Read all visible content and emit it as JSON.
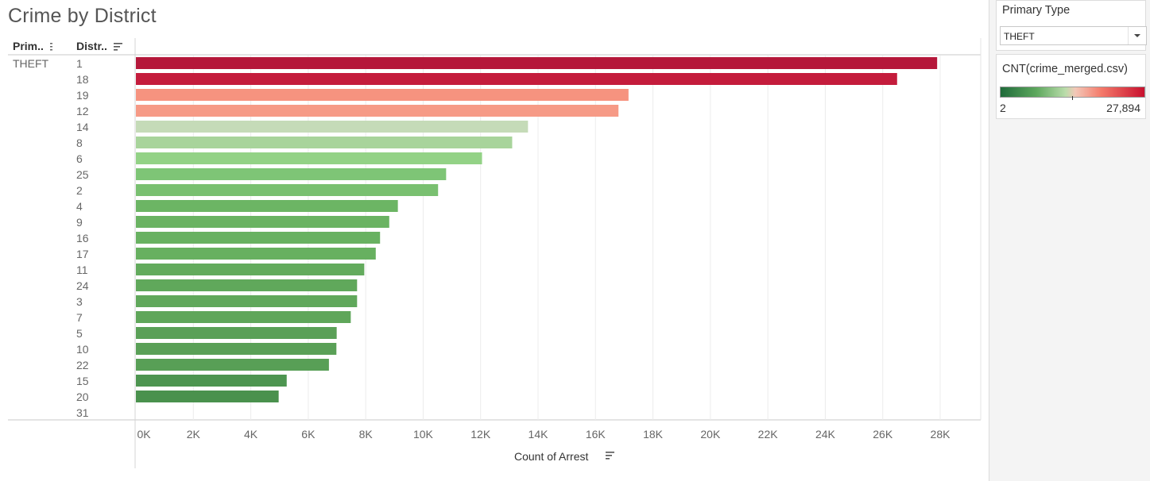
{
  "title": "Crime by District",
  "columns": {
    "primary": "Prim..",
    "district": "Distr.."
  },
  "primary_type_value": "THEFT",
  "filter": {
    "title": "Primary Type",
    "selected": "THEFT"
  },
  "legend": {
    "title": "CNT(crime_merged.csv)",
    "min_label": "2",
    "max_label": "27,894",
    "colors": [
      "#1f6b3a",
      "#5ea85e",
      "#b9dcaa",
      "#f3c8b8",
      "#f47a6a",
      "#c8102e"
    ]
  },
  "chart_data": {
    "type": "bar",
    "orientation": "horizontal",
    "title": "Crime by District",
    "xlabel": "Count of Arrest",
    "ylabel": "",
    "xlim": [
      0,
      28500
    ],
    "ticks": [
      "0K",
      "2K",
      "4K",
      "6K",
      "8K",
      "10K",
      "12K",
      "14K",
      "16K",
      "18K",
      "20K",
      "22K",
      "24K",
      "26K",
      "28K"
    ],
    "grid": true,
    "categories": [
      "1",
      "18",
      "19",
      "12",
      "14",
      "8",
      "6",
      "25",
      "2",
      "4",
      "9",
      "16",
      "17",
      "11",
      "24",
      "3",
      "7",
      "5",
      "10",
      "22",
      "15",
      "20",
      "31"
    ],
    "values": [
      27894,
      26500,
      17150,
      16800,
      13650,
      13100,
      12050,
      10800,
      10520,
      9120,
      8820,
      8500,
      8350,
      7950,
      7700,
      7700,
      7480,
      6990,
      6980,
      6720,
      5250,
      4970,
      0
    ],
    "colors": [
      "#b5173a",
      "#c41c3c",
      "#f6937f",
      "#f69a86",
      "#c5dbb8",
      "#a8d49b",
      "#93d286",
      "#7ec576",
      "#79c070",
      "#6cb564",
      "#6ab362",
      "#68b161",
      "#67b060",
      "#63ab5d",
      "#60a85b",
      "#60a85b",
      "#5fa65a",
      "#5aa057",
      "#5aa057",
      "#589f56",
      "#4d9550",
      "#4a914d",
      "#4a914d"
    ]
  }
}
